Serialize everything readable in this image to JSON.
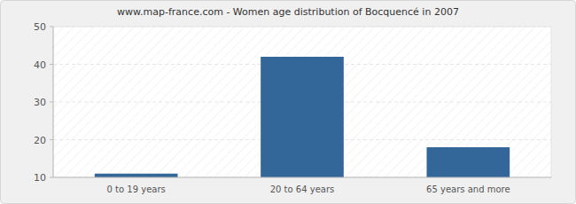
{
  "chart_data": {
    "type": "bar",
    "title": "www.map-france.com - Women age distribution of Bocquencé in 2007",
    "categories": [
      "0 to 19 years",
      "20 to 64 years",
      "65 years and more"
    ],
    "values": [
      11,
      42,
      18
    ],
    "color": "#336699",
    "ylim": [
      10,
      50
    ],
    "yticks": [
      10,
      20,
      30,
      40,
      50
    ],
    "grid": true
  }
}
